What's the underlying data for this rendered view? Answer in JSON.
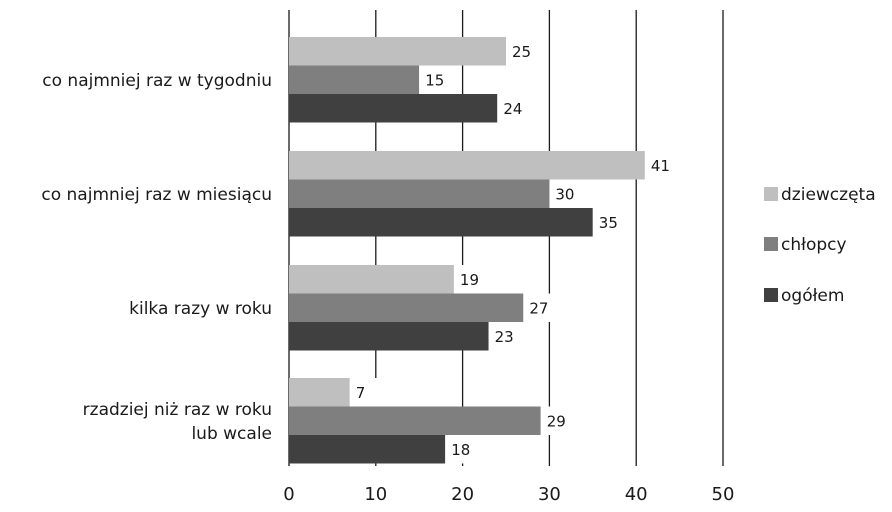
{
  "chart_data": {
    "type": "bar",
    "orientation": "horizontal",
    "categories": [
      [
        "co najmniej raz w tygodniu"
      ],
      [
        "co najmniej raz w miesiącu"
      ],
      [
        "kilka razy w roku"
      ],
      [
        "rzadziej niż raz w roku",
        "lub wcale"
      ]
    ],
    "series": [
      {
        "name": "dziewczęta",
        "values": [
          25,
          41,
          19,
          7
        ],
        "color": "#bfbfbf"
      },
      {
        "name": "chłopcy",
        "values": [
          15,
          30,
          27,
          29
        ],
        "color": "#7f7f7f"
      },
      {
        "name": "ogółem",
        "values": [
          24,
          35,
          23,
          18
        ],
        "color": "#404040"
      }
    ],
    "xlim": [
      0,
      50
    ],
    "xticks": [
      0,
      10,
      20,
      30,
      40,
      50
    ],
    "grid": true,
    "legend_position": "right"
  }
}
